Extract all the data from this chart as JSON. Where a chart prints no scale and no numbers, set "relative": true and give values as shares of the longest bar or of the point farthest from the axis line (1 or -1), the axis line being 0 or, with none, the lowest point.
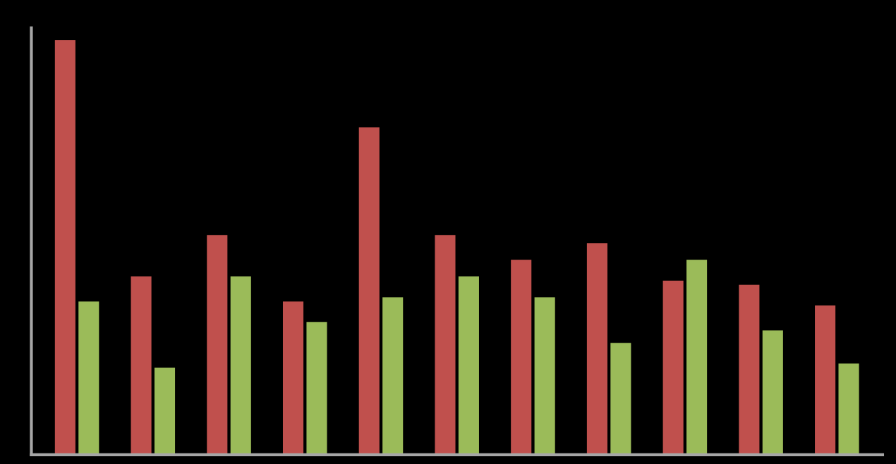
{
  "chart_data": {
    "type": "bar",
    "relative": true,
    "categories": [
      null,
      null,
      null,
      null,
      null,
      null,
      null,
      null,
      null,
      null,
      null
    ],
    "series": [
      {
        "color": "#c0504d",
        "values": [
          1,
          0.43,
          0.53,
          0.37,
          0.79,
          0.53,
          0.47,
          0.51,
          0.42,
          0.41,
          0.36
        ]
      },
      {
        "color": "#9bbb59",
        "values": [
          0.37,
          0.21,
          0.43,
          0.32,
          0.38,
          0.43,
          0.38,
          0.27,
          0.47,
          0.3,
          0.22
        ]
      }
    ]
  }
}
